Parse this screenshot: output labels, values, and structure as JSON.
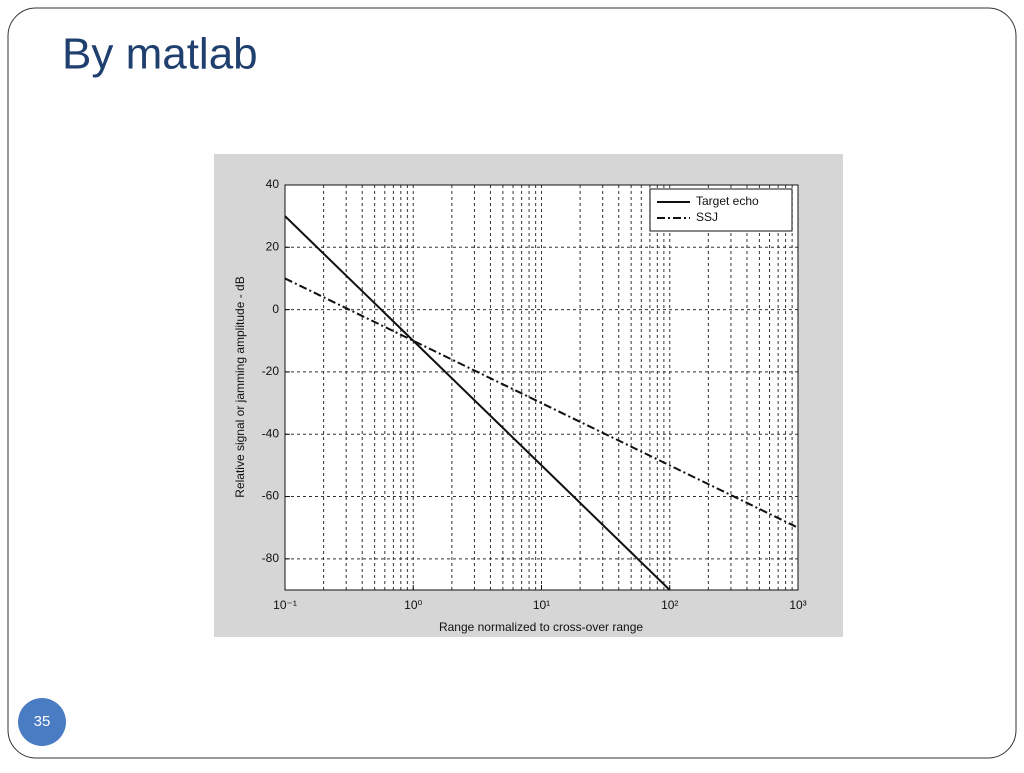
{
  "slide": {
    "title": "By matlab",
    "page_number": "35"
  },
  "chart_data": {
    "type": "line",
    "xlabel": "Range normalized to cross-over range",
    "ylabel": "Relative signal or jamming amplitude - dB",
    "x": [
      0.1,
      1,
      10,
      100,
      1000
    ],
    "series": [
      {
        "name": "Target echo",
        "color": "#111111",
        "dash": "solid",
        "values": [
          30,
          -10,
          -50,
          -90,
          null
        ]
      },
      {
        "name": "SSJ",
        "color": "#111111",
        "dash": "dashdot",
        "values": [
          10,
          -10,
          -30,
          -50,
          -70
        ]
      }
    ],
    "xlim": [
      0.1,
      1000
    ],
    "x_log": true,
    "xticks": [
      {
        "value": 0.1,
        "label": "10⁻¹"
      },
      {
        "value": 1,
        "label": "10⁰"
      },
      {
        "value": 10,
        "label": "10¹"
      },
      {
        "value": 100,
        "label": "10²"
      },
      {
        "value": 1000,
        "label": "10³"
      }
    ],
    "ylim": [
      -90,
      40
    ],
    "yticks": [
      -80,
      -60,
      -40,
      -20,
      0,
      20,
      40
    ],
    "grid": true,
    "legend": "northeast"
  }
}
